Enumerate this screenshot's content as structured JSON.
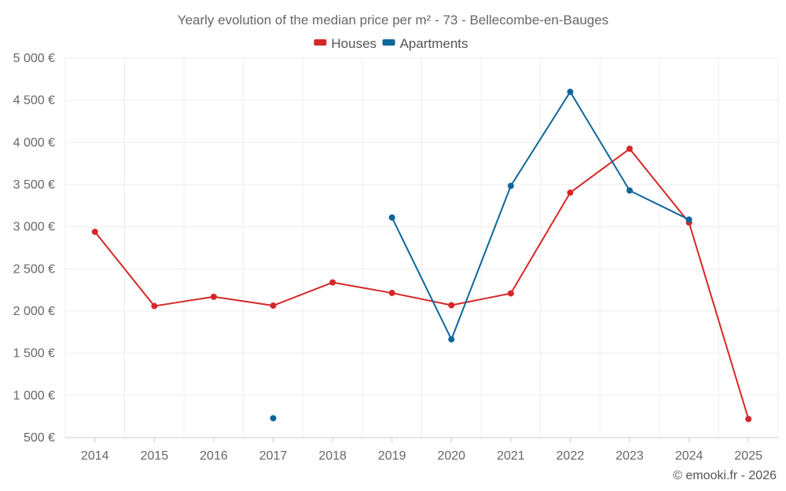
{
  "chart_data": {
    "type": "line",
    "title": "Yearly evolution of the median price per m² - 73 - Bellecombe-en-Bauges",
    "categories": [
      "2014",
      "2015",
      "2016",
      "2017",
      "2018",
      "2019",
      "2020",
      "2021",
      "2022",
      "2023",
      "2024",
      "2025"
    ],
    "ylim": [
      500,
      5000
    ],
    "yticks": [
      500,
      1000,
      1500,
      2000,
      2500,
      3000,
      3500,
      4000,
      4500,
      5000
    ],
    "ytick_labels": [
      "500 €",
      "1 000 €",
      "1 500 €",
      "2 000 €",
      "2 500 €",
      "3 000 €",
      "3 500 €",
      "4 000 €",
      "4 500 €",
      "5 000 €"
    ],
    "grid": true,
    "legend_position": "top-center",
    "series": [
      {
        "name": "Houses",
        "color": "#d62728",
        "values": [
          2940,
          2060,
          2170,
          2065,
          2340,
          2215,
          2070,
          2210,
          3405,
          3925,
          3050,
          720
        ]
      },
      {
        "name": "Apartments",
        "color": "#0d6699",
        "values": [
          null,
          null,
          null,
          730,
          null,
          3110,
          1665,
          3485,
          4600,
          3430,
          3085,
          null
        ]
      }
    ]
  },
  "credit": "© emooki.fr - 2026"
}
